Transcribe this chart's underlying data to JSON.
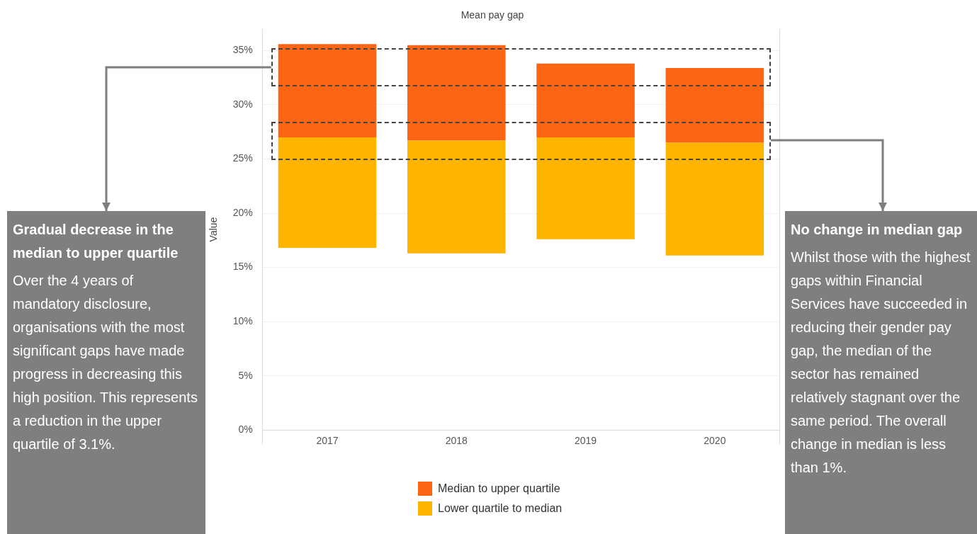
{
  "chart_data": {
    "type": "bar",
    "title": "Mean pay gap",
    "ylabel": "Value",
    "categories": [
      "2017",
      "2018",
      "2019",
      "2020"
    ],
    "stacked": true,
    "series": [
      {
        "name": "Lower quartile to median",
        "color": "#ffb400",
        "base": [
          16.8,
          16.3,
          17.6,
          16.1
        ],
        "values": [
          10.2,
          10.4,
          9.4,
          10.4
        ]
      },
      {
        "name": "Median to upper quartile",
        "color": "#fc6514",
        "values": [
          8.6,
          8.8,
          6.8,
          6.9
        ]
      }
    ],
    "ylim": [
      0,
      37
    ],
    "yticks": [
      {
        "value": 0,
        "label": "0%"
      },
      {
        "value": 5,
        "label": "5%"
      },
      {
        "value": 10,
        "label": "10%"
      },
      {
        "value": 15,
        "label": "15%"
      },
      {
        "value": 20,
        "label": "20%"
      },
      {
        "value": 25,
        "label": "25%"
      },
      {
        "value": 30,
        "label": "30%"
      },
      {
        "value": 35,
        "label": "35%"
      }
    ],
    "grid": "y",
    "legend": "bottom",
    "annotations": [
      "Gradual decrease in the median to upper quartile",
      "Over the 4 years of mandatory disclosure, organisations with the most significant gaps have made progress in decreasing this high position. This represents a reduction in the upper quartile of 3.1%.",
      "No change in median gap",
      "Whilst those with the highest gaps within Financial Services have succeeded in reducing their gender pay gap, the median of the sector has remained relatively stagnant over the same period. The overall change in median is less than 1%."
    ]
  }
}
